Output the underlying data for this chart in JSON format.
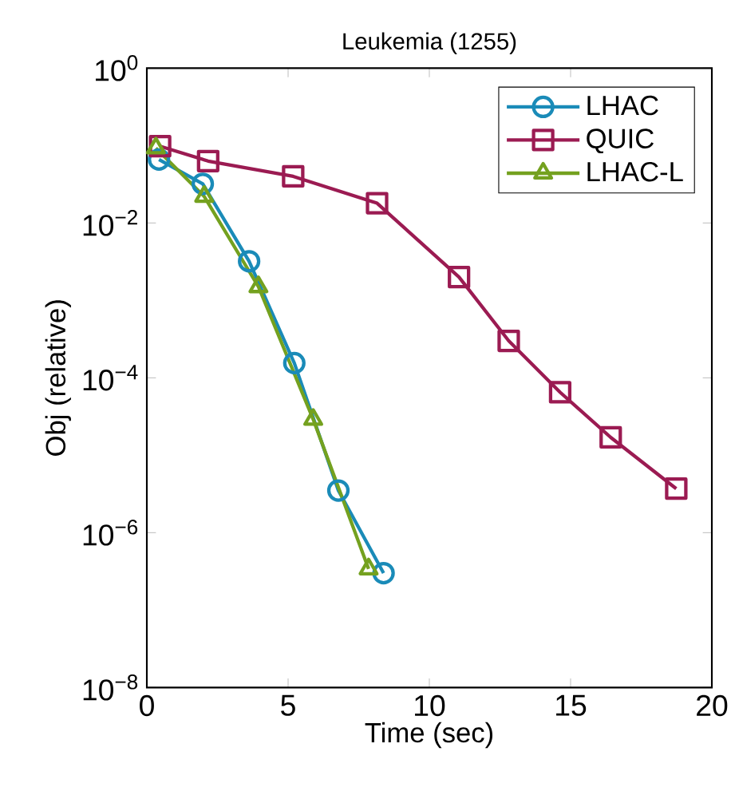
{
  "chart_data": {
    "type": "line",
    "title": "Leukemia (1255)",
    "xlabel": "Time (sec)",
    "ylabel": "Obj (relative)",
    "log": "y",
    "xlim": [
      0,
      20
    ],
    "ylim": [
      1e-08,
      1
    ],
    "xticks": [
      0,
      5,
      10,
      15,
      20
    ],
    "yticks": [
      {
        "value": 1e-08,
        "label": "10$^{−8}$"
      },
      {
        "value": 1e-06,
        "label": "10$^{−6}$"
      },
      {
        "value": 0.0001,
        "label": "10$^{−4}$"
      },
      {
        "value": 0.01,
        "label": "10$^{−2}$"
      },
      {
        "value": 1,
        "label": "10$^{0}$"
      }
    ],
    "grid": false,
    "legend": "top right",
    "line_style": "solid",
    "series": [
      {
        "name": "LHAC",
        "color": "#1a8bb8",
        "marker": "circle",
        "x": [
          0.43,
          1.98,
          3.62,
          5.22,
          6.78,
          8.38
        ],
        "values": [
          0.066,
          0.032,
          0.0032,
          0.000155,
          3.5e-06,
          3e-07
        ]
      },
      {
        "name": "QUIC",
        "color": "#9b1b52",
        "marker": "square",
        "x": [
          0.47,
          2.17,
          5.18,
          8.15,
          11.05,
          12.81,
          14.63,
          16.42,
          18.74
        ],
        "values": [
          0.098,
          0.063,
          0.04,
          0.018,
          0.002,
          0.0003,
          6.5e-05,
          1.7e-05,
          3.7e-06
        ]
      },
      {
        "name": "LHAC-L",
        "color": "#74a11f",
        "marker": "triangle",
        "x": [
          0.32,
          2.03,
          3.95,
          5.89,
          7.85
        ],
        "values": [
          0.093,
          0.022,
          0.0015,
          2.9e-05,
          3.4e-07
        ]
      }
    ]
  }
}
